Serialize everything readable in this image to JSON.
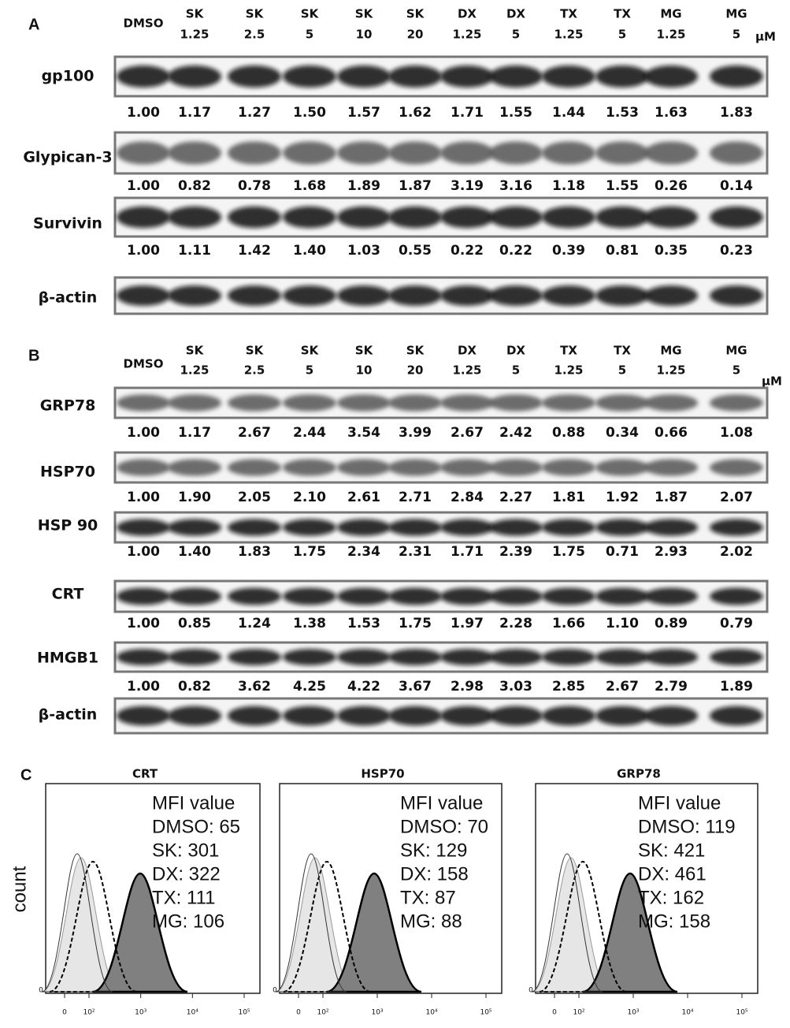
{
  "panel_a": {
    "label": "A",
    "lanes": [
      {
        "line1": "DMSO"
      },
      {
        "line1": "SK",
        "line2": "1.25"
      },
      {
        "line1": "SK",
        "line2": "2.5"
      },
      {
        "line1": "SK",
        "line2": "5"
      },
      {
        "line1": "SK",
        "line2": "10"
      },
      {
        "line1": "SK",
        "line2": "20"
      },
      {
        "line1": "DX",
        "line2": "1.25"
      },
      {
        "line1": "DX",
        "line2": "5"
      },
      {
        "line1": "TX",
        "line2": "1.25"
      },
      {
        "line1": "TX",
        "line2": "5"
      },
      {
        "line1": "MG",
        "line2": "1.25"
      },
      {
        "line1": "MG",
        "line2": "5"
      }
    ],
    "unit": "μM",
    "blots": [
      {
        "label": "gp100",
        "values": [
          "1.00",
          "1.17",
          "1.27",
          "1.50",
          "1.57",
          "1.62",
          "1.71",
          "1.55",
          "1.44",
          "1.53",
          "1.63",
          "1.83"
        ]
      },
      {
        "label": "Glypican-3",
        "values": [
          "1.00",
          "0.82",
          "0.78",
          "1.68",
          "1.89",
          "1.87",
          "3.19",
          "3.16",
          "1.18",
          "1.55",
          "0.26",
          "0.14"
        ]
      },
      {
        "label": "Survivin",
        "values": [
          "1.00",
          "1.11",
          "1.42",
          "1.40",
          "1.03",
          "0.55",
          "0.22",
          "0.22",
          "0.39",
          "0.81",
          "0.35",
          "0.23"
        ]
      },
      {
        "label": "β-actin"
      }
    ]
  },
  "panel_b": {
    "label": "B",
    "lanes": [
      {
        "line1": "DMSO"
      },
      {
        "line1": "SK",
        "line2": "1.25"
      },
      {
        "line1": "SK",
        "line2": "2.5"
      },
      {
        "line1": "SK",
        "line2": "5"
      },
      {
        "line1": "SK",
        "line2": "10"
      },
      {
        "line1": "SK",
        "line2": "20"
      },
      {
        "line1": "DX",
        "line2": "1.25"
      },
      {
        "line1": "DX",
        "line2": "5"
      },
      {
        "line1": "TX",
        "line2": "1.25"
      },
      {
        "line1": "TX",
        "line2": "5"
      },
      {
        "line1": "MG",
        "line2": "1.25"
      },
      {
        "line1": "MG",
        "line2": "5"
      }
    ],
    "unit": "μM",
    "blots": [
      {
        "label": "GRP78",
        "values": [
          "1.00",
          "1.17",
          "2.67",
          "2.44",
          "3.54",
          "3.99",
          "2.67",
          "2.42",
          "0.88",
          "0.34",
          "0.66",
          "1.08"
        ]
      },
      {
        "label": "HSP70",
        "values": [
          "1.00",
          "1.90",
          "2.05",
          "2.10",
          "2.61",
          "2.71",
          "2.84",
          "2.27",
          "1.81",
          "1.92",
          "1.87",
          "2.07"
        ]
      },
      {
        "label": "HSP 90",
        "values": [
          "1.00",
          "1.40",
          "1.83",
          "1.75",
          "2.34",
          "2.31",
          "1.71",
          "2.39",
          "1.75",
          "0.71",
          "2.93",
          "2.02"
        ]
      },
      {
        "label": "CRT",
        "values": [
          "1.00",
          "0.85",
          "1.24",
          "1.38",
          "1.53",
          "1.75",
          "1.97",
          "2.28",
          "1.66",
          "1.10",
          "0.89",
          "0.79"
        ]
      },
      {
        "label": "HMGB1",
        "values": [
          "1.00",
          "0.82",
          "3.62",
          "4.25",
          "4.22",
          "3.67",
          "2.98",
          "3.03",
          "2.85",
          "2.67",
          "2.79",
          "1.89"
        ]
      },
      {
        "label": "β-actin"
      }
    ]
  },
  "panel_c": {
    "label": "C",
    "y_label": "count",
    "plots": [
      {
        "title": "CRT",
        "legend_title": "MFI value",
        "entries": [
          "DMSO: 65",
          "SK: 301",
          "DX: 322",
          "TX: 111",
          "MG: 106"
        ],
        "y_tick": "0",
        "x_ticks": [
          "0",
          "10²",
          "10³",
          "10⁴",
          "10⁵"
        ]
      },
      {
        "title": "HSP70",
        "legend_title": "MFI value",
        "entries": [
          "DMSO: 70",
          "SK: 129",
          "DX: 158",
          "TX: 87",
          "MG: 88"
        ],
        "y_tick": "0",
        "x_ticks": [
          "0",
          "10²",
          "10³",
          "10⁴",
          "10⁵"
        ]
      },
      {
        "title": "GRP78",
        "legend_title": "MFI value",
        "entries": [
          "DMSO: 119",
          "SK: 421",
          "DX: 461",
          "TX: 162",
          "MG: 158"
        ],
        "y_tick": "0",
        "x_ticks": [
          "0",
          "10²",
          "10³",
          "10⁴",
          "10⁵"
        ]
      }
    ]
  }
}
